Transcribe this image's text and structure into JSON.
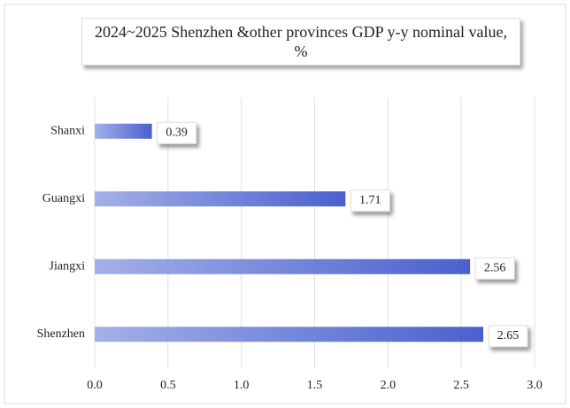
{
  "chart_data": {
    "type": "hbar",
    "title": "2024~2025 Shenzhen &other provinces GDP y-y nominal value, %",
    "categories": [
      "Shanxi",
      "Guangxi",
      "Jiangxi",
      "Shenzhen"
    ],
    "values": [
      0.39,
      1.71,
      2.56,
      2.65
    ],
    "color": "#4a60cf",
    "xlim": [
      0,
      3
    ],
    "xticks": [
      {
        "value": 0,
        "label": "0.0"
      },
      0.5,
      {
        "value": 1,
        "label": "1.0"
      },
      1.5,
      {
        "value": 2,
        "label": "2.0"
      },
      2.5,
      {
        "value": 3,
        "label": "3.0"
      }
    ],
    "grid": true
  }
}
